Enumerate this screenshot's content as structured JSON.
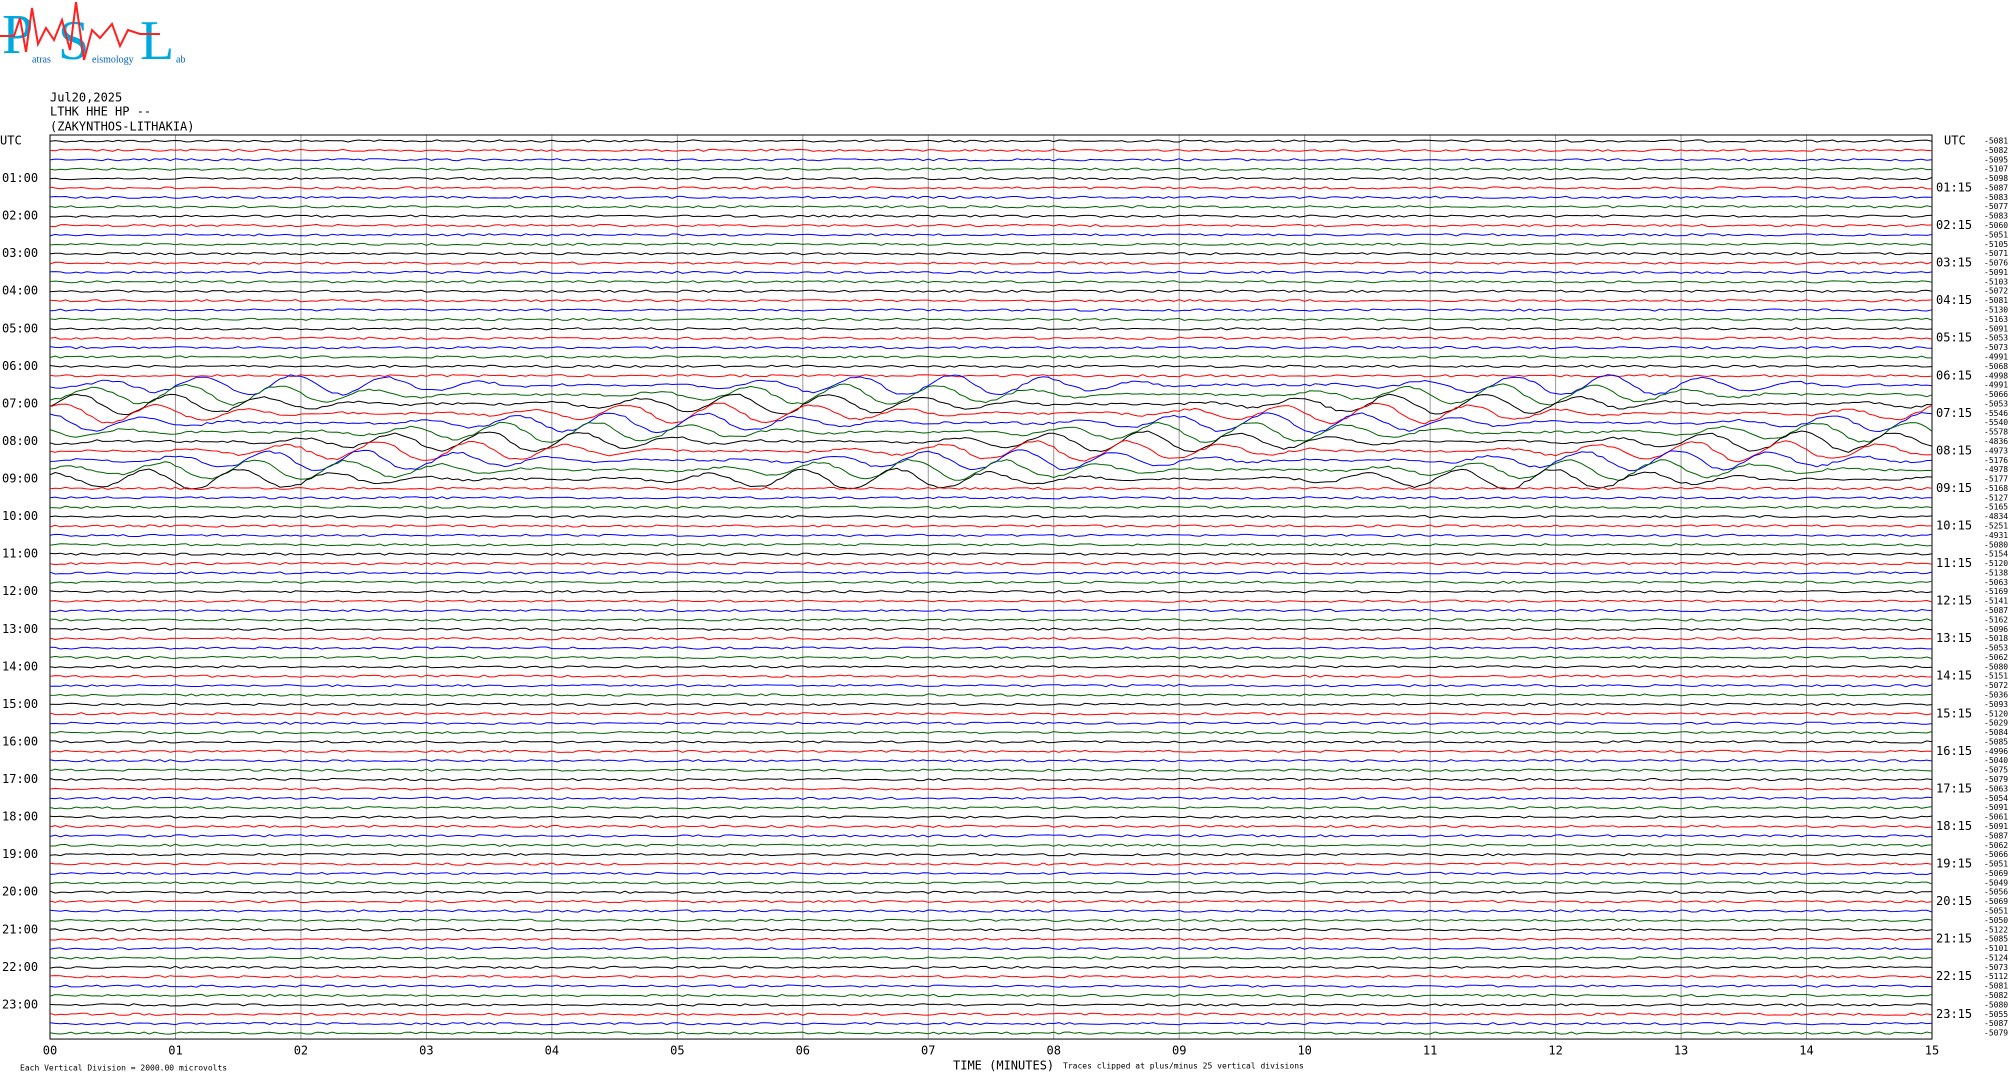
{
  "logo": {
    "letters": [
      "P",
      "S",
      "L"
    ],
    "words": [
      "atras",
      "eismology",
      "ab"
    ]
  },
  "header": {
    "date": "Jul20,2025",
    "station": "LTHK HHE HP --",
    "location": "(ZAKYNTHOS-LITHAKIA)"
  },
  "left_axis": {
    "title": "UTC",
    "labels": [
      "01:00",
      "02:00",
      "03:00",
      "04:00",
      "05:00",
      "06:00",
      "07:00",
      "08:00",
      "09:00",
      "10:00",
      "11:00",
      "12:00",
      "13:00",
      "14:00",
      "15:00",
      "16:00",
      "17:00",
      "18:00",
      "19:00",
      "20:00",
      "21:00",
      "22:00",
      "23:00"
    ]
  },
  "right_axis": {
    "title": "UTC",
    "labels": [
      "01:15",
      "02:15",
      "03:15",
      "04:15",
      "05:15",
      "06:15",
      "07:15",
      "08:15",
      "09:15",
      "10:15",
      "11:15",
      "12:15",
      "13:15",
      "14:15",
      "15:15",
      "16:15",
      "17:15",
      "18:15",
      "19:15",
      "20:15",
      "21:15",
      "22:15",
      "23:15"
    ]
  },
  "trace_offsets": [
    "-5081",
    "-5082",
    "-5095",
    "-5107",
    "-5098",
    "-5087",
    "-5083",
    "-5077",
    "-5083",
    "-5060",
    "-5051",
    "-5105",
    "-5071",
    "-5076",
    "-5091",
    "-5103",
    "-5072",
    "-5081",
    "-5130",
    "-5163",
    "-5091",
    "-5053",
    "-5073",
    "-4991",
    "-5068",
    "-4998",
    "-4991",
    "-5066",
    "-5053",
    "-5546",
    "-5540",
    "-5578",
    "-4836",
    "-4973",
    "-5176",
    "-4978",
    "-5177",
    "-5168",
    "-5127",
    "-5165",
    "-4834",
    "-5251",
    "-4931",
    "-5080",
    "-5154",
    "-5120",
    "-5138",
    "-5063",
    "-5169",
    "-5141",
    "-5087",
    "-5162",
    "-5096",
    "-5018",
    "-5053",
    "-5062",
    "-5080",
    "-5151",
    "-5072",
    "-5036",
    "-5093",
    "-5120",
    "-5029",
    "-5084",
    "-5085",
    "-4996",
    "-5040",
    "-5075",
    "-5079",
    "-5063",
    "-5054",
    "-5091",
    "-5061",
    "-5091",
    "-5087",
    "-5062",
    "-5066",
    "-5051",
    "-5069",
    "-5049",
    "-5056",
    "-5069",
    "-5051",
    "-5050",
    "-5122",
    "-5085",
    "-5101",
    "-5124",
    "-5073",
    "-5112",
    "-5081",
    "-5082",
    "-5080",
    "-5055",
    "-5087",
    "-5079"
  ],
  "trace_colors": [
    "#000000",
    "#ff0000",
    "#0000ff",
    "#006400"
  ],
  "minute_labels": [
    "00",
    "01",
    "02",
    "03",
    "04",
    "05",
    "06",
    "07",
    "08",
    "09",
    "10",
    "11",
    "12",
    "13",
    "14",
    "15"
  ],
  "footer": {
    "scale_note": "Each Vertical Division = 2000.00 microvolts",
    "x_title": "TIME (MINUTES)",
    "clip_note": "Traces clipped at plus/minus 25 vertical divisions"
  }
}
